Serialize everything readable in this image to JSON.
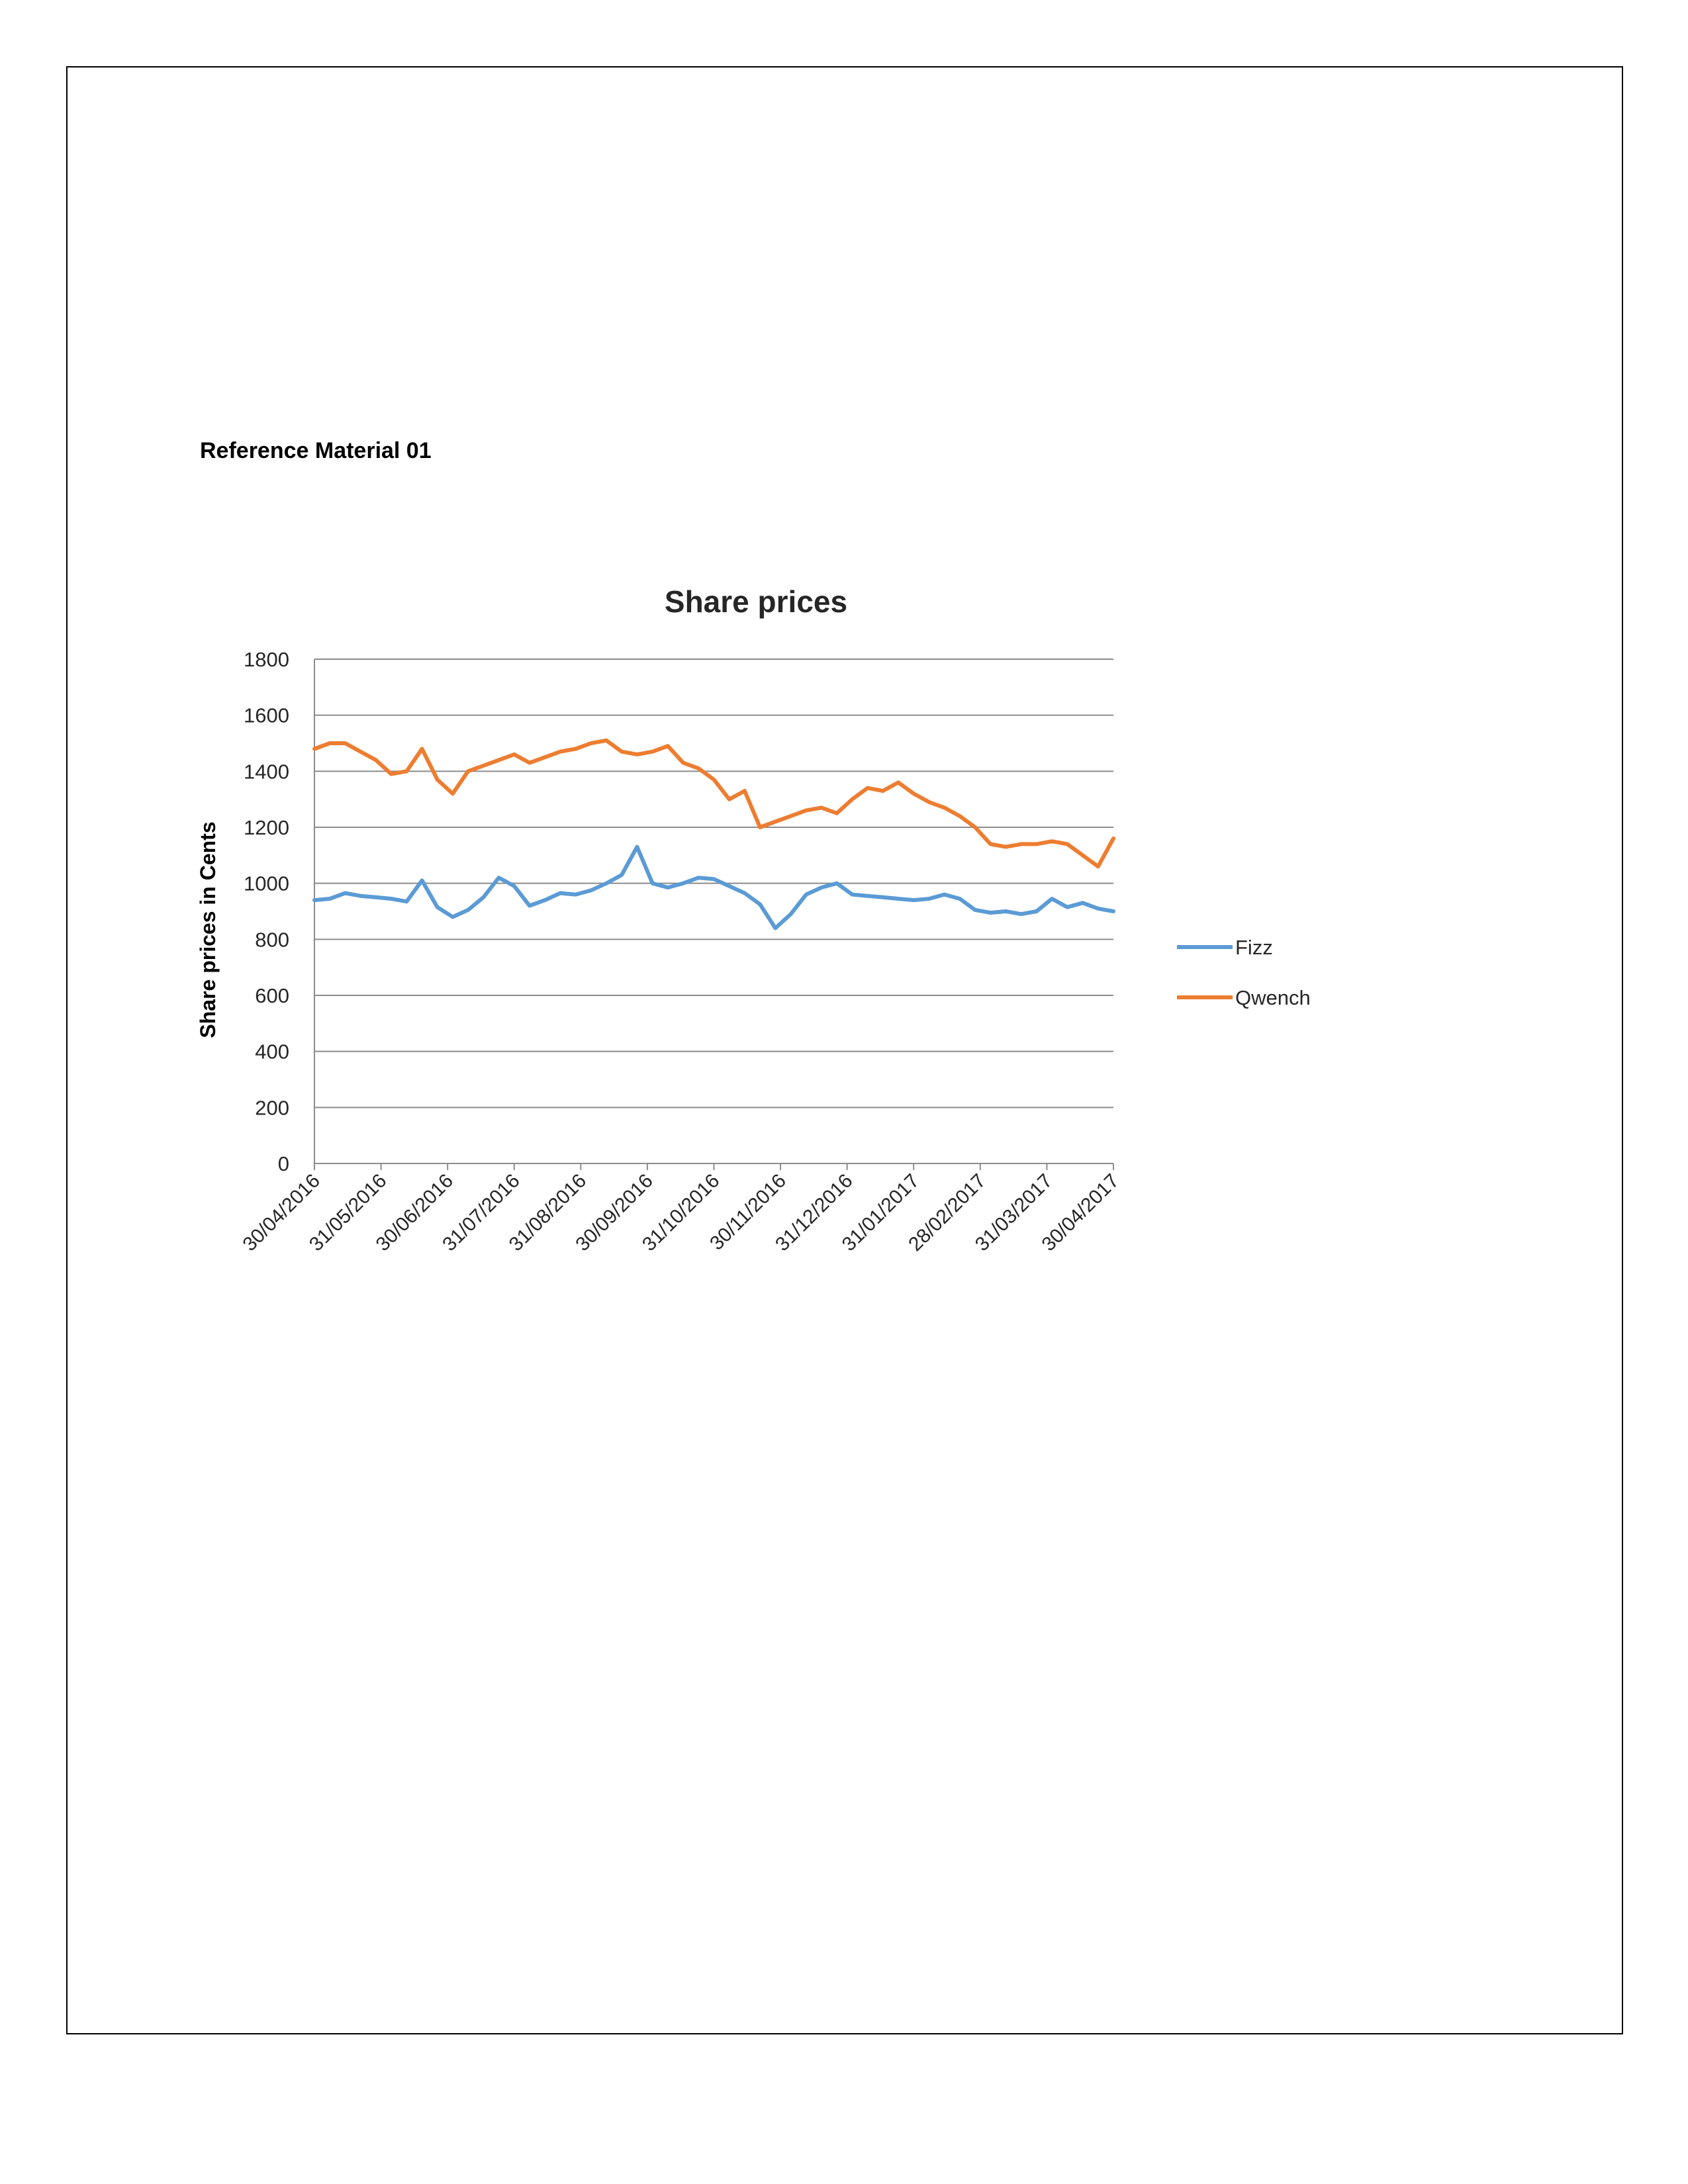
{
  "document": {
    "heading": "Reference Material 01"
  },
  "chart_data": {
    "type": "line",
    "title": "Share prices",
    "xlabel": "",
    "ylabel": "Share prices in Cents",
    "ylim": [
      0,
      1800
    ],
    "yticks": [
      0,
      200,
      400,
      600,
      800,
      1000,
      1200,
      1400,
      1600,
      1800
    ],
    "x_tick_labels": [
      "30/04/2016",
      "31/05/2016",
      "30/06/2016",
      "31/07/2016",
      "31/08/2016",
      "30/09/2016",
      "31/10/2016",
      "30/11/2016",
      "31/12/2016",
      "31/01/2017",
      "28/02/2017",
      "31/03/2017",
      "30/04/2017"
    ],
    "grid": "horizontal",
    "legend_position": "right",
    "x": [
      "30/04/2016",
      "07/05/2016",
      "14/05/2016",
      "21/05/2016",
      "28/05/2016",
      "04/06/2016",
      "11/06/2016",
      "18/06/2016",
      "25/06/2016",
      "02/07/2016",
      "09/07/2016",
      "16/07/2016",
      "23/07/2016",
      "30/07/2016",
      "06/08/2016",
      "13/08/2016",
      "20/08/2016",
      "27/08/2016",
      "03/09/2016",
      "10/09/2016",
      "17/09/2016",
      "24/09/2016",
      "01/10/2016",
      "08/10/2016",
      "15/10/2016",
      "22/10/2016",
      "29/10/2016",
      "05/11/2016",
      "12/11/2016",
      "19/11/2016",
      "26/11/2016",
      "03/12/2016",
      "10/12/2016",
      "17/12/2016",
      "24/12/2016",
      "31/12/2016",
      "07/01/2017",
      "14/01/2017",
      "21/01/2017",
      "28/01/2017",
      "04/02/2017",
      "11/02/2017",
      "18/02/2017",
      "25/02/2017",
      "04/03/2017",
      "11/03/2017",
      "18/03/2017",
      "25/03/2017",
      "01/04/2017",
      "08/04/2017",
      "15/04/2017",
      "22/04/2017",
      "29/04/2017"
    ],
    "series": [
      {
        "name": "Fizz",
        "color": "#5B9BD5",
        "values": [
          940,
          945,
          965,
          955,
          950,
          945,
          935,
          1010,
          915,
          880,
          905,
          950,
          1020,
          990,
          920,
          940,
          965,
          960,
          975,
          1000,
          1030,
          1130,
          1000,
          985,
          1000,
          1020,
          1015,
          990,
          965,
          925,
          840,
          890,
          960,
          985,
          1000,
          960,
          955,
          950,
          945,
          940,
          945,
          960,
          945,
          905,
          895,
          900,
          890,
          900,
          945,
          915,
          930,
          910,
          900
        ]
      },
      {
        "name": "Qwench",
        "color": "#ED7D31",
        "values": [
          1480,
          1500,
          1500,
          1470,
          1440,
          1390,
          1400,
          1480,
          1370,
          1320,
          1400,
          1420,
          1440,
          1460,
          1430,
          1450,
          1470,
          1480,
          1500,
          1510,
          1470,
          1460,
          1470,
          1490,
          1430,
          1410,
          1370,
          1300,
          1330,
          1200,
          1220,
          1240,
          1260,
          1270,
          1250,
          1300,
          1340,
          1330,
          1360,
          1320,
          1290,
          1270,
          1240,
          1200,
          1140,
          1130,
          1140,
          1140,
          1150,
          1140,
          1100,
          1060,
          1160
        ]
      }
    ]
  }
}
